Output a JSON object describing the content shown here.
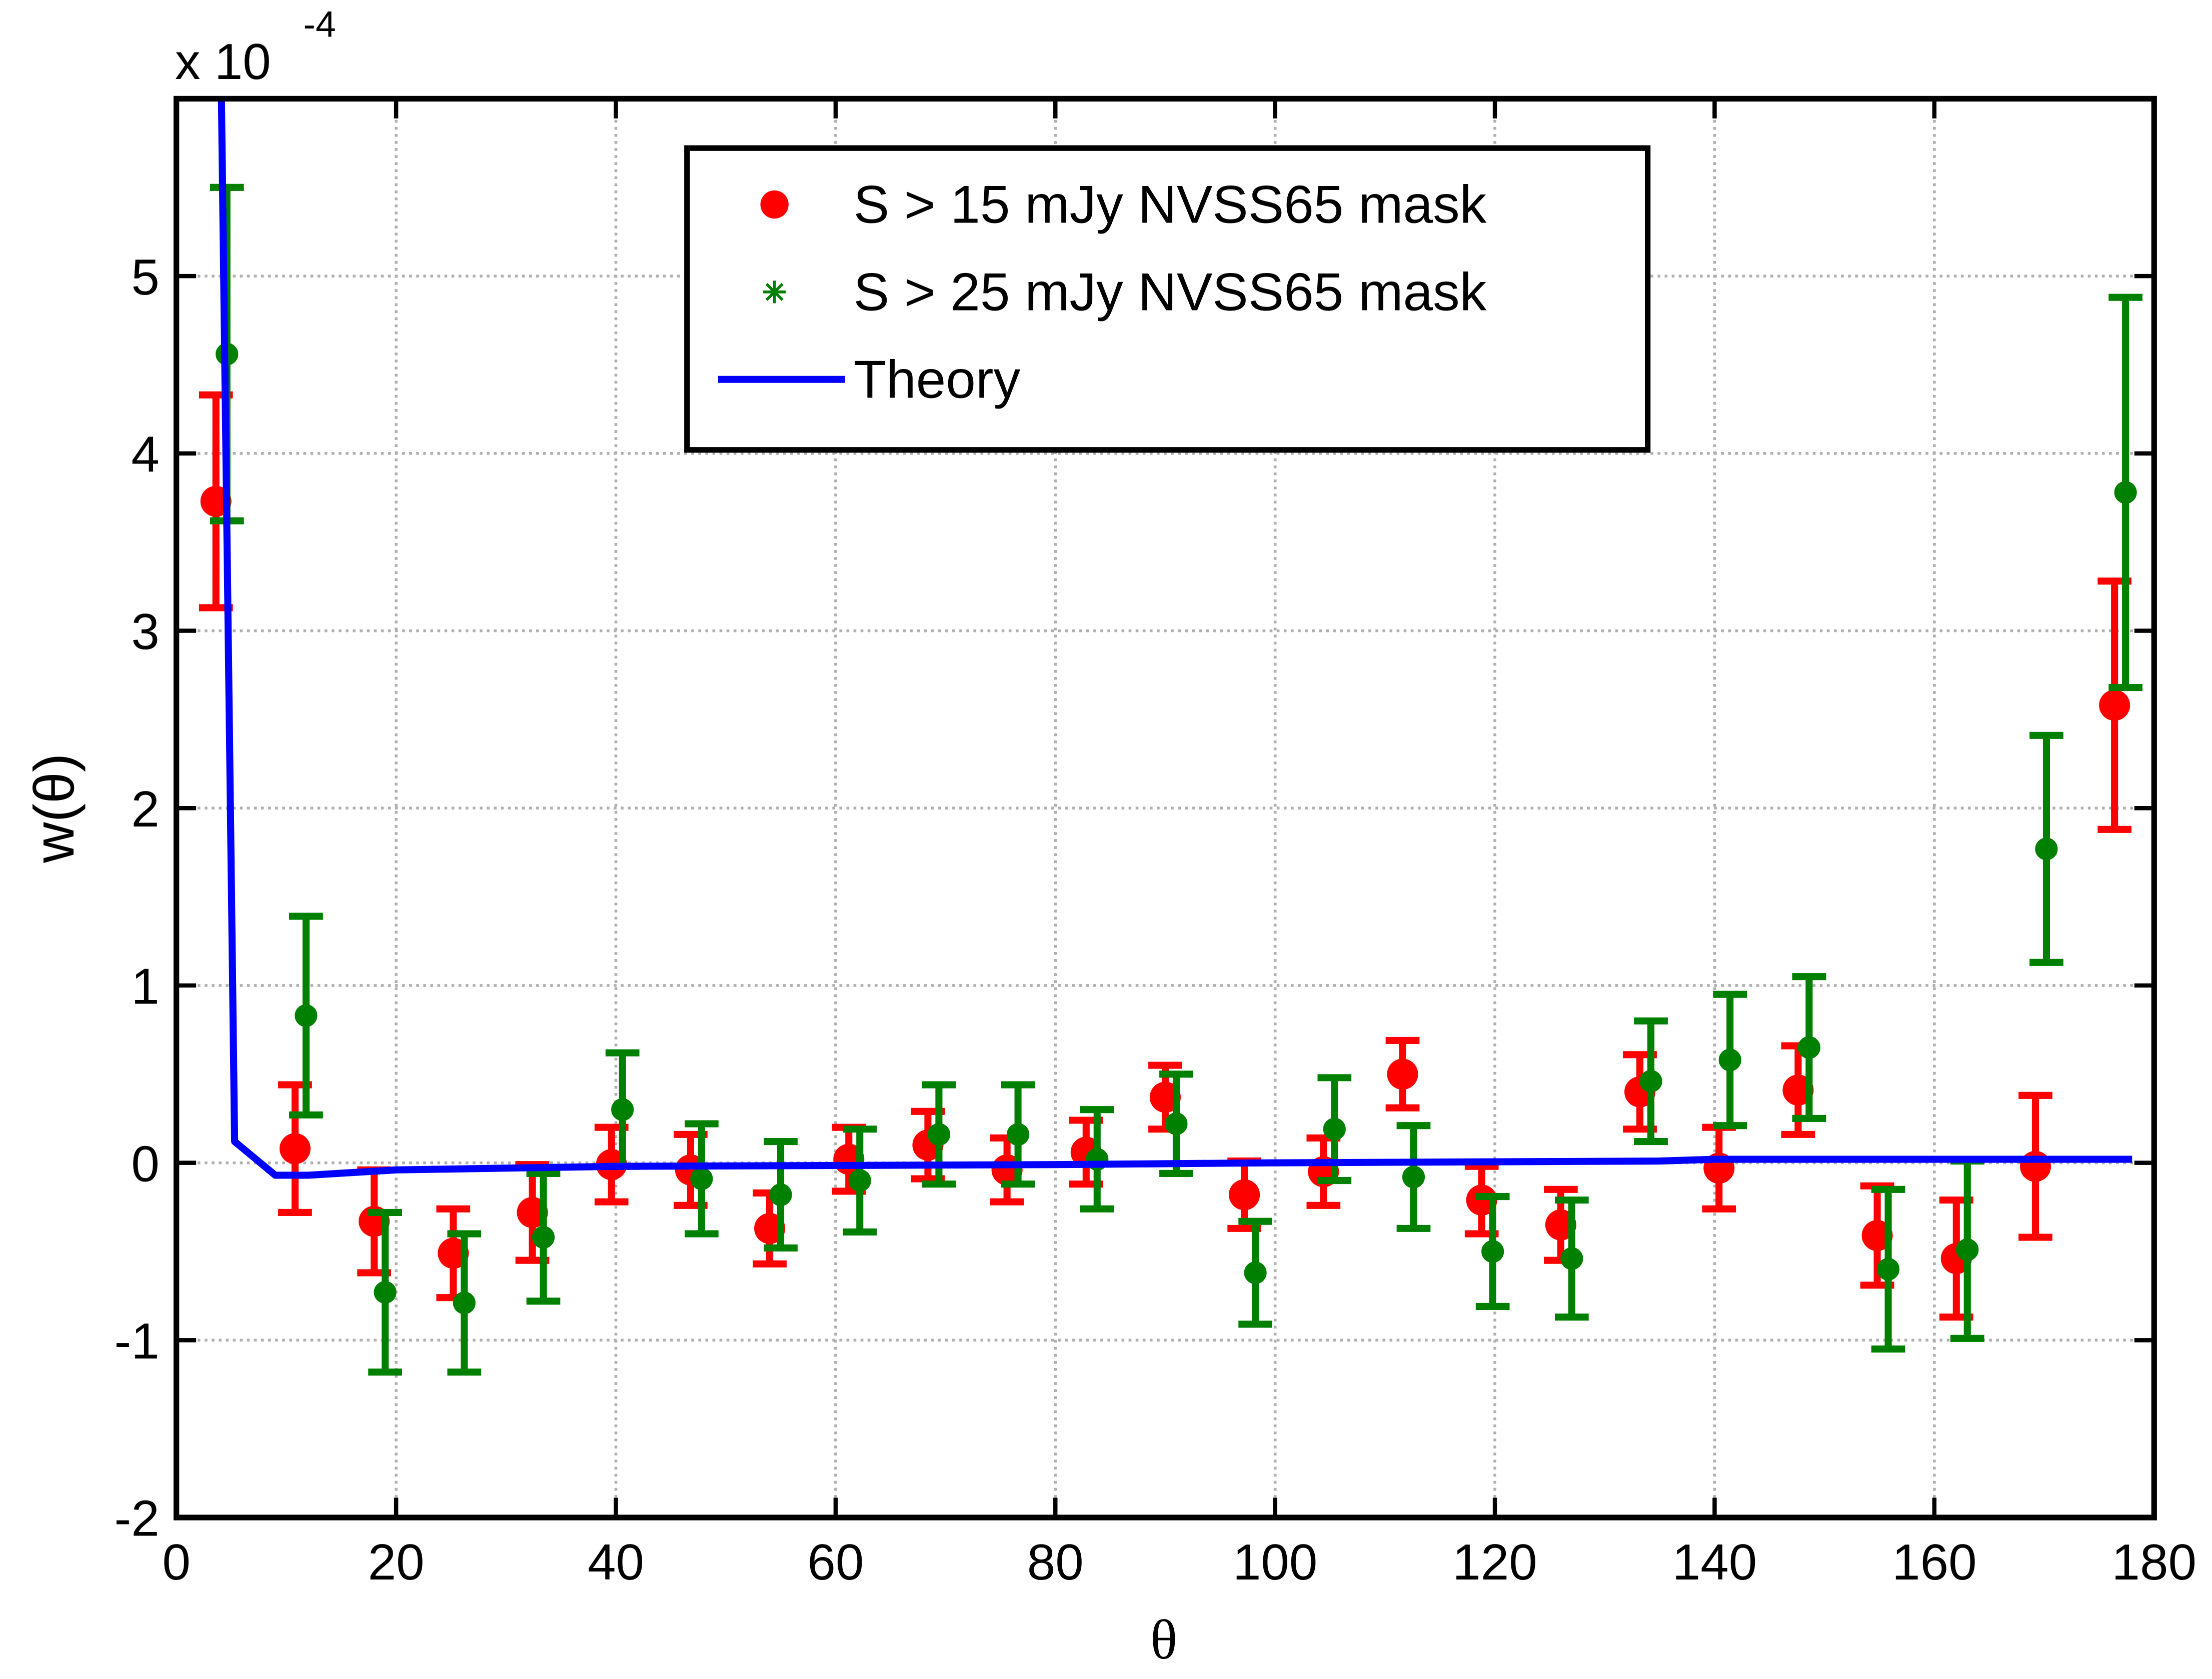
{
  "chart_data": {
    "type": "errorbar",
    "x_label": "θ",
    "y_label": "w(θ)",
    "y_multiplier": "x 10",
    "y_multiplier_exponent": "-4",
    "xlim": [
      0,
      180
    ],
    "ylim": [
      -2,
      6
    ],
    "xticks": [
      0,
      20,
      40,
      60,
      80,
      100,
      120,
      140,
      160,
      180
    ],
    "yticks": [
      -2,
      -1,
      0,
      1,
      2,
      3,
      4,
      5
    ],
    "grid": true,
    "legend": "top",
    "series": [
      {
        "name": "S > 15 mJy NVSS65 mask",
        "color": "#ff0000",
        "marker": "o",
        "x": [
          3.6,
          10.8,
          18,
          25.2,
          32.4,
          39.6,
          46.8,
          54,
          61.2,
          68.4,
          75.6,
          82.8,
          90,
          97.2,
          104.4,
          111.6,
          118.8,
          126,
          133.2,
          140.4,
          147.6,
          154.8,
          162,
          169.2,
          176.4
        ],
        "values": [
          3.73,
          0.08,
          -0.33,
          -0.51,
          -0.28,
          -0.01,
          -0.04,
          -0.37,
          0.02,
          0.1,
          -0.04,
          0.06,
          0.37,
          -0.18,
          -0.05,
          0.5,
          -0.21,
          -0.35,
          0.4,
          -0.03,
          0.41,
          -0.41,
          -0.54,
          -0.02,
          2.58
        ],
        "errors": [
          0.6,
          0.36,
          0.29,
          0.25,
          0.27,
          0.21,
          0.2,
          0.2,
          0.18,
          0.19,
          0.18,
          0.18,
          0.18,
          0.19,
          0.19,
          0.19,
          0.19,
          0.2,
          0.21,
          0.23,
          0.25,
          0.28,
          0.33,
          0.4,
          0.7
        ]
      },
      {
        "name": "S > 25 mJy NVSS65 mask",
        "color": "#008000",
        "marker": "*",
        "x": [
          4.6,
          11.8,
          19,
          26.2,
          33.4,
          40.6,
          47.8,
          55,
          62.2,
          69.4,
          76.6,
          83.8,
          91,
          98.2,
          105.4,
          112.6,
          119.8,
          127,
          134.2,
          141.4,
          148.6,
          155.8,
          163,
          170.2,
          177.4
        ],
        "values": [
          4.56,
          0.83,
          -0.73,
          -0.79,
          -0.42,
          0.3,
          -0.09,
          -0.18,
          -0.1,
          0.16,
          0.16,
          0.02,
          0.22,
          -0.62,
          0.19,
          -0.08,
          -0.5,
          -0.54,
          0.46,
          0.58,
          0.65,
          -0.6,
          -0.49,
          1.77,
          3.78
        ],
        "errors": [
          0.94,
          0.56,
          0.45,
          0.39,
          0.36,
          0.32,
          0.31,
          0.3,
          0.29,
          0.28,
          0.28,
          0.28,
          0.28,
          0.29,
          0.29,
          0.29,
          0.31,
          0.33,
          0.34,
          0.37,
          0.4,
          0.45,
          0.5,
          0.64,
          1.1
        ]
      },
      {
        "name": "Theory",
        "color": "#0000ff",
        "marker": "line",
        "x": [
          4.1,
          5.3,
          9,
          12,
          20,
          40,
          80,
          100,
          135,
          140,
          178
        ],
        "values": [
          6,
          0.12,
          -0.07,
          -0.07,
          -0.04,
          -0.02,
          -0.01,
          0,
          0.01,
          0.02,
          0.02
        ]
      }
    ]
  }
}
